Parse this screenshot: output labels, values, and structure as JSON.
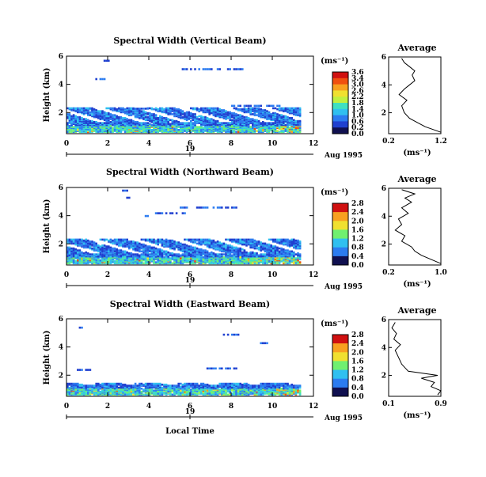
{
  "colors": {
    "scale": [
      "#101050",
      "#2040d0",
      "#2c7cf0",
      "#30c0f0",
      "#40e0c0",
      "#70f070",
      "#c0f040",
      "#f0e030",
      "#f8a020",
      "#f05010",
      "#d01010"
    ],
    "line": "#000000"
  },
  "shared": {
    "x_ticks": [
      "0",
      "2",
      "4",
      "6",
      "8",
      "10",
      "12"
    ],
    "date_day": "19",
    "date_suffix": "Aug 1995",
    "x_label": "Local Time",
    "units_label": "(ms⁻¹)",
    "avg_title": "Average"
  },
  "chart_data": [
    {
      "type": "heatmap",
      "title": "Spectral Width (Vertical Beam)",
      "ylabel": "Height (km)",
      "xlim": [
        0,
        12
      ],
      "ylim": [
        0.5,
        6
      ],
      "y_ticks": [
        "2",
        "4",
        "6"
      ],
      "colorbar": {
        "range": [
          0,
          3.6
        ],
        "ticks": [
          "3.6",
          "3.4",
          "3.0",
          "2.6",
          "2.2",
          "1.8",
          "1.4",
          "1.0",
          "0.6",
          "0.2",
          "0.0"
        ]
      },
      "profile": {
        "xlim": [
          0.2,
          1.2
        ],
        "x_ticks": [
          "0.2",
          "1.2"
        ],
        "xlabel": "(ms⁻¹)",
        "y_ticks": [
          "2",
          "4",
          "6"
        ],
        "points": [
          [
            1.2,
            0.6
          ],
          [
            1.05,
            0.8
          ],
          [
            0.9,
            1.0
          ],
          [
            0.75,
            1.3
          ],
          [
            0.6,
            1.6
          ],
          [
            0.5,
            2.0
          ],
          [
            0.45,
            2.5
          ],
          [
            0.55,
            2.9
          ],
          [
            0.4,
            3.3
          ],
          [
            0.5,
            3.7
          ],
          [
            0.6,
            4.0
          ],
          [
            0.7,
            4.3
          ],
          [
            0.65,
            4.7
          ],
          [
            0.7,
            5.0
          ],
          [
            0.6,
            5.3
          ],
          [
            0.5,
            5.6
          ],
          [
            0.45,
            5.9
          ]
        ]
      }
    },
    {
      "type": "heatmap",
      "title": "Spectral Width (Northward Beam)",
      "ylabel": "Height (km)",
      "xlim": [
        0,
        12
      ],
      "ylim": [
        0.5,
        6
      ],
      "y_ticks": [
        "2",
        "4",
        "6"
      ],
      "colorbar": {
        "range": [
          0,
          2.8
        ],
        "ticks": [
          "2.8",
          "2.4",
          "2.0",
          "1.6",
          "1.2",
          "0.8",
          "0.4",
          "0.0"
        ]
      },
      "profile": {
        "xlim": [
          0.2,
          1.0
        ],
        "x_ticks": [
          "0.2",
          "1.0"
        ],
        "xlabel": "(ms⁻¹)",
        "y_ticks": [
          "2",
          "4",
          "6"
        ],
        "points": [
          [
            1.0,
            0.6
          ],
          [
            0.85,
            0.9
          ],
          [
            0.7,
            1.2
          ],
          [
            0.6,
            1.5
          ],
          [
            0.55,
            1.8
          ],
          [
            0.4,
            2.2
          ],
          [
            0.45,
            2.6
          ],
          [
            0.3,
            3.0
          ],
          [
            0.4,
            3.4
          ],
          [
            0.35,
            3.8
          ],
          [
            0.5,
            4.2
          ],
          [
            0.4,
            4.6
          ],
          [
            0.55,
            5.0
          ],
          [
            0.45,
            5.3
          ],
          [
            0.6,
            5.6
          ],
          [
            0.4,
            5.9
          ]
        ]
      }
    },
    {
      "type": "heatmap",
      "title": "Spectral Width (Eastward Beam)",
      "ylabel": "Height (km)",
      "xlim": [
        0,
        12
      ],
      "ylim": [
        0.5,
        6
      ],
      "y_ticks": [
        "2",
        "4",
        "6"
      ],
      "colorbar": {
        "range": [
          0,
          2.8
        ],
        "ticks": [
          "2.8",
          "2.4",
          "2.0",
          "1.6",
          "1.2",
          "0.8",
          "0.4",
          "0.0"
        ]
      },
      "profile": {
        "xlim": [
          0.1,
          0.9
        ],
        "x_ticks": [
          "0.1",
          "0.9"
        ],
        "xlabel": "(ms⁻¹)",
        "y_ticks": [
          "2",
          "4",
          "6"
        ],
        "points": [
          [
            0.85,
            0.6
          ],
          [
            0.9,
            0.9
          ],
          [
            0.75,
            1.2
          ],
          [
            0.8,
            1.5
          ],
          [
            0.6,
            1.8
          ],
          [
            0.85,
            2.0
          ],
          [
            0.4,
            2.3
          ],
          [
            0.3,
            2.8
          ],
          [
            0.25,
            3.3
          ],
          [
            0.2,
            3.8
          ],
          [
            0.28,
            4.2
          ],
          [
            0.18,
            4.6
          ],
          [
            0.22,
            5.0
          ],
          [
            0.15,
            5.4
          ],
          [
            0.2,
            5.8
          ]
        ]
      }
    }
  ]
}
